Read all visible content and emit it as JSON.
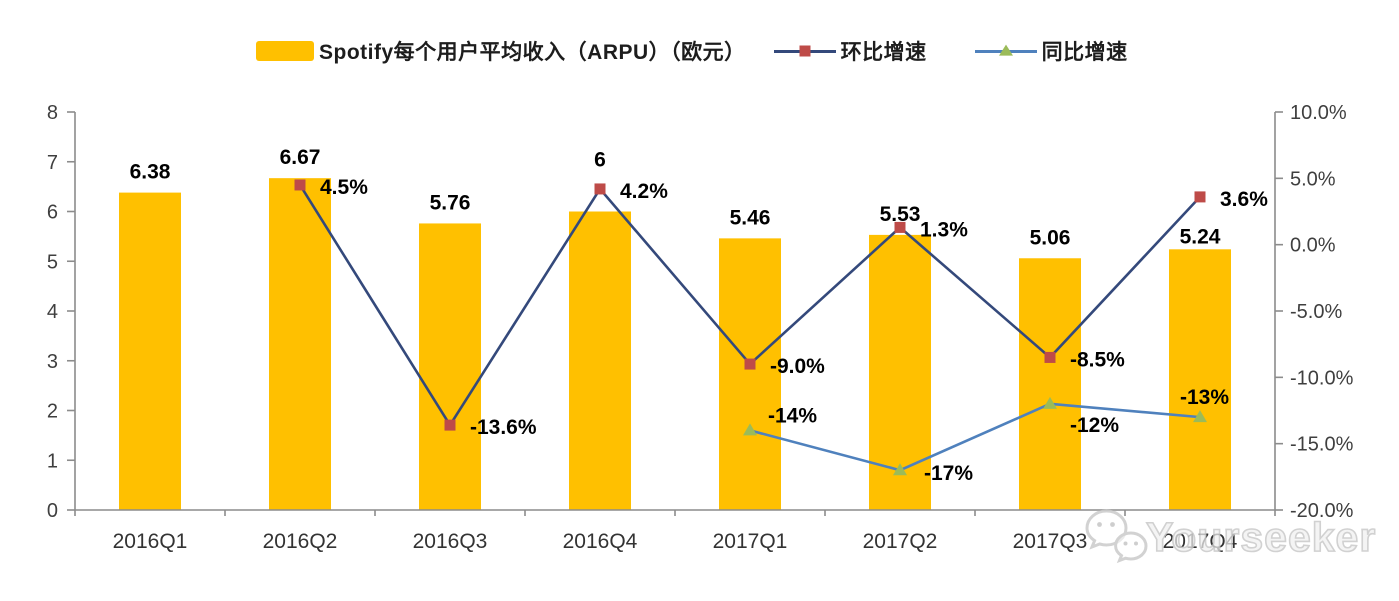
{
  "legend": {
    "bar_label": "Spotify每个用户平均收入（ARPU）（欧元）",
    "qoq_label": "环比增速",
    "yoy_label": "同比增速"
  },
  "watermark": {
    "text": "Yourseeker",
    "icon": "wechat-icon"
  },
  "colors": {
    "bar": "#FFC000",
    "qoq_line": "#34497B",
    "qoq_marker": "#BE4B48",
    "yoy_line": "#4F81BD",
    "yoy_marker": "#9BBB59",
    "axis": "#8c8c8c",
    "watermark": "#c9c9c9"
  },
  "chart_data": {
    "type": "bar+line combo",
    "legend_position": "top",
    "grid": false,
    "categories": [
      "2016Q1",
      "2016Q2",
      "2016Q3",
      "2016Q4",
      "2017Q1",
      "2017Q2",
      "2017Q3",
      "2017Q4"
    ],
    "bar_series": {
      "name": "Spotify每个用户平均收入（ARPU）（欧元）",
      "axis": "left",
      "values": [
        6.38,
        6.67,
        5.76,
        6,
        5.46,
        5.53,
        5.06,
        5.24
      ],
      "labels": [
        "6.38",
        "6.67",
        "5.76",
        "6",
        "5.46",
        "5.53",
        "5.06",
        "5.24"
      ]
    },
    "line_series": [
      {
        "name": "环比增速",
        "axis": "right",
        "marker": "square",
        "values": [
          null,
          4.5,
          -13.6,
          4.2,
          -9.0,
          1.3,
          -8.5,
          3.6
        ],
        "labels": [
          null,
          "4.5%",
          "-13.6%",
          "4.2%",
          "-9.0%",
          "1.3%",
          "-8.5%",
          "3.6%"
        ]
      },
      {
        "name": "同比增速",
        "axis": "right",
        "marker": "triangle",
        "values": [
          null,
          null,
          null,
          null,
          -14,
          -17,
          -12,
          -13
        ],
        "labels": [
          null,
          null,
          null,
          null,
          "-14%",
          "-17%",
          "-12%",
          "-13%"
        ]
      }
    ],
    "left_axis": {
      "min": 0,
      "max": 8,
      "values": [
        8,
        7,
        6,
        5,
        4,
        3,
        2,
        1,
        0
      ],
      "labels": [
        "8",
        "7",
        "6",
        "5",
        "4",
        "3",
        "2",
        "1",
        "0"
      ]
    },
    "right_axis": {
      "min": -20,
      "max": 10,
      "values": [
        10,
        5,
        0,
        -5,
        -10,
        -15,
        -20
      ],
      "labels": [
        "10.0%",
        "5.0%",
        "0.0%",
        "-5.0%",
        "-10.0%",
        "-15.0%",
        "-20.0%"
      ]
    }
  }
}
